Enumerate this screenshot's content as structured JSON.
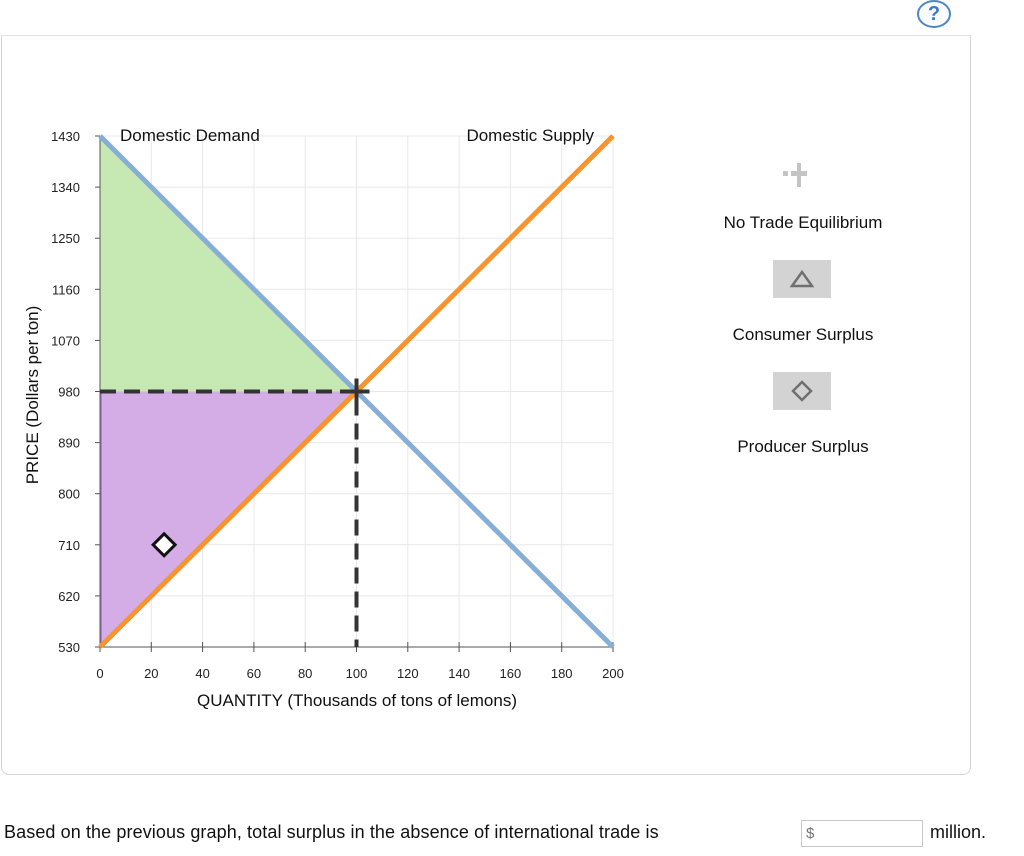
{
  "help": {
    "label": "?"
  },
  "chart_data": {
    "type": "line",
    "xlabel": "QUANTITY (Thousands of tons of lemons)",
    "ylabel": "PRICE (Dollars per ton)",
    "xlim": [
      0,
      200
    ],
    "ylim": [
      530,
      1430
    ],
    "xticks": [
      0,
      20,
      40,
      60,
      80,
      100,
      120,
      140,
      160,
      180,
      200
    ],
    "yticks": [
      530,
      620,
      710,
      800,
      890,
      980,
      1070,
      1160,
      1250,
      1340,
      1430
    ],
    "grid": true,
    "series": [
      {
        "name": "Domestic Demand",
        "color": "#86aed6",
        "x": [
          0,
          200
        ],
        "y": [
          1430,
          530
        ]
      },
      {
        "name": "Domestic Supply",
        "color": "#f7942d",
        "x": [
          0,
          200
        ],
        "y": [
          530,
          1430
        ]
      }
    ],
    "equilibrium": {
      "x": 100,
      "y": 980,
      "color": "#333333"
    },
    "shaded_areas": [
      {
        "kind": "consumer-surplus",
        "color": "#c6e9b4",
        "points": [
          [
            0,
            1430
          ],
          [
            100,
            980
          ],
          [
            0,
            980
          ]
        ]
      },
      {
        "kind": "producer-surplus",
        "color": "#d4ade6",
        "points": [
          [
            0,
            980
          ],
          [
            100,
            980
          ],
          [
            0,
            530
          ]
        ]
      }
    ],
    "marker": {
      "shape": "diamond",
      "x": 25,
      "y": 710
    }
  },
  "legend": {
    "items": [
      {
        "label": "No Trade Equilibrium",
        "icon": "cross-icon"
      },
      {
        "label": "Consumer Surplus",
        "icon": "triangle-icon"
      },
      {
        "label": "Producer Surplus",
        "icon": "diamond-icon"
      }
    ]
  },
  "question": {
    "text": "Based on the previous graph, total surplus in the absence of international trade is",
    "placeholder": "$",
    "value": "",
    "suffix": "million."
  }
}
